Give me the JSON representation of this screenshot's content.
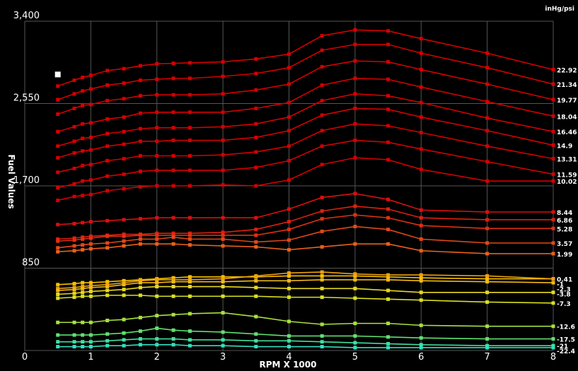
{
  "chart_data": {
    "type": "line",
    "xlabel": "RPM X 1000",
    "ylabel": "Fuel Values",
    "unit_label": "inHg/psi",
    "xlim": [
      0,
      8
    ],
    "ylim": [
      0,
      3400
    ],
    "x_ticks": [
      "0",
      "1",
      "2",
      "3",
      "4",
      "5",
      "6",
      "7",
      "8"
    ],
    "x_tick_values": [
      0,
      1,
      2,
      3,
      4,
      5,
      6,
      7,
      8
    ],
    "y_ticks": [
      "850",
      "1,700",
      "2,550",
      "3,400"
    ],
    "y_tick_values": [
      850,
      1700,
      2550,
      3400
    ],
    "grid": true,
    "x": [
      0.5,
      0.75,
      0.875,
      1.0,
      1.25,
      1.5,
      1.75,
      2.0,
      2.25,
      2.5,
      3.0,
      3.5,
      4.0,
      4.5,
      5.0,
      5.5,
      6.0,
      7.0,
      8.0
    ],
    "series": [
      {
        "name": "22.92",
        "color": "#d40000",
        "values": [
          2730,
          2790,
          2820,
          2840,
          2890,
          2910,
          2940,
          2960,
          2965,
          2970,
          2980,
          3010,
          3060,
          3250,
          3310,
          3300,
          3220,
          3070,
          2900
        ]
      },
      {
        "name": "21.34",
        "color": "#d40000",
        "values": [
          2590,
          2650,
          2680,
          2700,
          2740,
          2760,
          2790,
          2800,
          2810,
          2810,
          2830,
          2860,
          2920,
          3100,
          3160,
          3160,
          3070,
          2920,
          2750
        ]
      },
      {
        "name": "19.77",
        "color": "#d40000",
        "values": [
          2440,
          2500,
          2530,
          2540,
          2580,
          2600,
          2630,
          2640,
          2640,
          2640,
          2650,
          2690,
          2750,
          2930,
          2990,
          2980,
          2900,
          2750,
          2590
        ]
      },
      {
        "name": "18.04",
        "color": "#d40000",
        "values": [
          2260,
          2310,
          2340,
          2350,
          2390,
          2410,
          2450,
          2460,
          2460,
          2460,
          2460,
          2500,
          2560,
          2740,
          2810,
          2800,
          2720,
          2570,
          2420
        ]
      },
      {
        "name": "16.46",
        "color": "#d40000",
        "values": [
          2110,
          2160,
          2190,
          2200,
          2240,
          2260,
          2290,
          2300,
          2300,
          2300,
          2310,
          2340,
          2410,
          2580,
          2650,
          2630,
          2560,
          2400,
          2260
        ]
      },
      {
        "name": "14.9",
        "color": "#d40000",
        "values": [
          1990,
          2040,
          2060,
          2070,
          2110,
          2130,
          2160,
          2160,
          2170,
          2170,
          2170,
          2200,
          2270,
          2430,
          2500,
          2490,
          2410,
          2270,
          2120
        ]
      },
      {
        "name": "13.31",
        "color": "#d40000",
        "values": [
          1840,
          1880,
          1910,
          1920,
          1960,
          1980,
          2010,
          2010,
          2010,
          2010,
          2020,
          2050,
          2110,
          2270,
          2340,
          2320,
          2250,
          2110,
          1980
        ]
      },
      {
        "name": "11.59",
        "color": "#d40000",
        "values": [
          1680,
          1720,
          1750,
          1760,
          1800,
          1820,
          1850,
          1860,
          1860,
          1860,
          1860,
          1890,
          1960,
          2110,
          2170,
          2150,
          2080,
          1950,
          1820
        ]
      },
      {
        "name": "10.02",
        "color": "#d40000",
        "values": [
          1550,
          1590,
          1600,
          1610,
          1650,
          1670,
          1690,
          1700,
          1700,
          1700,
          1710,
          1700,
          1760,
          1920,
          1990,
          1970,
          1870,
          1750,
          1750
        ]
      },
      {
        "name": "8.44",
        "color": "#d81010",
        "values": [
          1300,
          1310,
          1320,
          1330,
          1340,
          1350,
          1360,
          1370,
          1370,
          1370,
          1370,
          1370,
          1460,
          1580,
          1620,
          1560,
          1450,
          1430,
          1430
        ]
      },
      {
        "name": "6.86",
        "color": "#dc2010",
        "values": [
          1150,
          1160,
          1170,
          1180,
          1190,
          1200,
          1200,
          1210,
          1210,
          1210,
          1220,
          1250,
          1330,
          1440,
          1490,
          1460,
          1370,
          1350,
          1350
        ]
      },
      {
        "name": "5.28",
        "color": "#e03010",
        "values": [
          1130,
          1140,
          1150,
          1160,
          1180,
          1180,
          1190,
          1190,
          1190,
          1190,
          1190,
          1190,
          1250,
          1360,
          1400,
          1370,
          1290,
          1260,
          1260
        ]
      },
      {
        "name": "3.57",
        "color": "#e04818",
        "values": [
          1060,
          1080,
          1090,
          1100,
          1110,
          1130,
          1150,
          1150,
          1170,
          1150,
          1150,
          1120,
          1140,
          1230,
          1280,
          1250,
          1150,
          1110,
          1110
        ]
      },
      {
        "name": "1.99",
        "color": "#e86018",
        "values": [
          1020,
          1030,
          1040,
          1050,
          1060,
          1080,
          1100,
          1100,
          1100,
          1090,
          1080,
          1070,
          1040,
          1070,
          1100,
          1100,
          1030,
          1000,
          1000
        ]
      },
      {
        "name": "0.41",
        "color": "#f5c000",
        "values": [
          680,
          690,
          700,
          700,
          710,
          720,
          730,
          740,
          750,
          760,
          760,
          760,
          770,
          770,
          770,
          760,
          750,
          740,
          740
        ]
      },
      {
        "name": "-1",
        "color": "#f0a010",
        "values": [
          640,
          650,
          660,
          670,
          680,
          700,
          720,
          730,
          730,
          730,
          740,
          770,
          800,
          810,
          790,
          780,
          780,
          770,
          740
        ]
      },
      {
        "name": "-2.3",
        "color": "#f0b818",
        "values": [
          620,
          630,
          640,
          650,
          660,
          680,
          700,
          700,
          710,
          710,
          710,
          720,
          720,
          730,
          730,
          730,
          720,
          710,
          700
        ]
      },
      {
        "name": "-3.8",
        "color": "#e8d820",
        "values": [
          580,
          590,
          600,
          610,
          620,
          630,
          650,
          660,
          660,
          660,
          660,
          650,
          640,
          640,
          640,
          620,
          600,
          600,
          600
        ]
      },
      {
        "name": "-7.3",
        "color": "#d8e020",
        "values": [
          540,
          550,
          560,
          560,
          570,
          570,
          570,
          560,
          560,
          560,
          560,
          560,
          550,
          550,
          540,
          530,
          520,
          500,
          490
        ]
      },
      {
        "name": "-12.6",
        "color": "#a8e040",
        "values": [
          290,
          290,
          290,
          290,
          310,
          320,
          340,
          360,
          370,
          380,
          390,
          350,
          300,
          270,
          280,
          280,
          260,
          250,
          250
        ]
      },
      {
        "name": "-17.5",
        "color": "#60e070",
        "values": [
          160,
          160,
          160,
          160,
          170,
          180,
          200,
          230,
          210,
          200,
          190,
          170,
          150,
          150,
          150,
          140,
          130,
          120,
          120
        ]
      },
      {
        "name": "-21",
        "color": "#40e0a0",
        "values": [
          90,
          90,
          90,
          90,
          100,
          110,
          120,
          120,
          120,
          110,
          110,
          100,
          100,
          90,
          80,
          70,
          60,
          50,
          50
        ]
      },
      {
        "name": "-22.4",
        "color": "#30e0c0",
        "values": [
          40,
          40,
          40,
          40,
          50,
          50,
          60,
          60,
          60,
          50,
          50,
          40,
          40,
          40,
          30,
          30,
          30,
          30,
          30
        ]
      }
    ],
    "highlight": {
      "x": 0.5,
      "y": 2850
    }
  }
}
